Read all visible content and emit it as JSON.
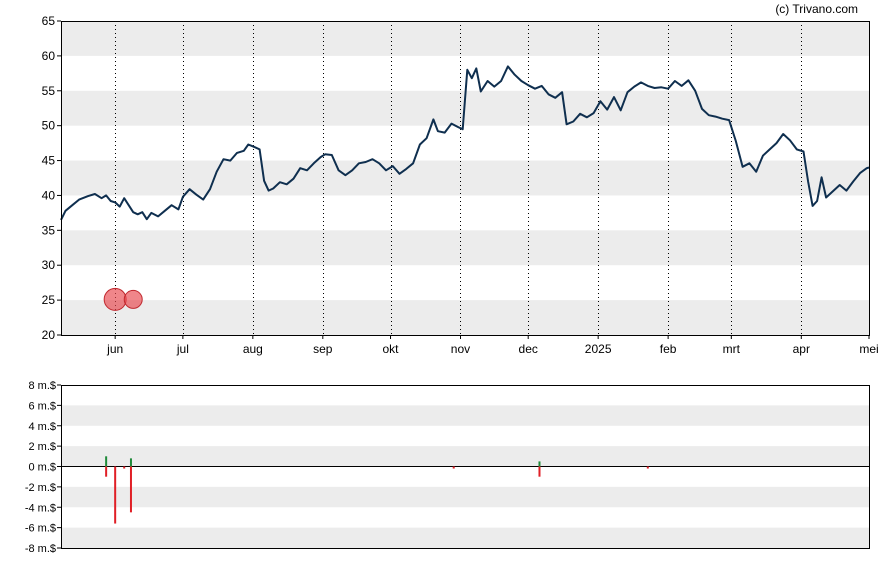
{
  "credit": "(c) Trivano.com",
  "colors": {
    "price_line": "#0f2f4f",
    "band": "#ececec",
    "grid": "#000000",
    "marker": "#e8454b",
    "vol_pos": "#1f8a3a",
    "vol_neg": "#e01f26"
  },
  "chart_data": [
    {
      "type": "line",
      "title": "",
      "ylim": [
        20,
        65
      ],
      "y_ticks": [
        "20",
        "25",
        "30",
        "35",
        "40",
        "45",
        "50",
        "55",
        "60",
        "65"
      ],
      "x_ticks": [
        "jun",
        "jul",
        "aug",
        "sep",
        "okt",
        "nov",
        "dec",
        "2025",
        "feb",
        "mrt",
        "apr",
        "mei"
      ],
      "x_tick_dates": [
        "2024-06-01",
        "2024-07-01",
        "2024-08-01",
        "2024-09-01",
        "2024-10-01",
        "2024-11-01",
        "2024-12-01",
        "2025-01-01",
        "2025-02-01",
        "2025-03-01",
        "2025-04-01",
        "2025-05-01"
      ],
      "x_range": [
        "2024-05-08",
        "2025-05-01"
      ],
      "grid": "vertical dotted at month starts, alternating horizontal bands",
      "series": [
        {
          "points": [
            [
              "2024-05-08",
              36.5
            ],
            [
              "2024-05-10",
              37.8
            ],
            [
              "2024-05-13",
              38.6
            ],
            [
              "2024-05-16",
              39.4
            ],
            [
              "2024-05-20",
              39.9
            ],
            [
              "2024-05-23",
              40.2
            ],
            [
              "2024-05-26",
              39.6
            ],
            [
              "2024-05-28",
              40.0
            ],
            [
              "2024-05-30",
              39.2
            ],
            [
              "2024-06-01",
              39.0
            ],
            [
              "2024-06-03",
              38.4
            ],
            [
              "2024-06-05",
              39.6
            ],
            [
              "2024-06-07",
              38.6
            ],
            [
              "2024-06-09",
              37.6
            ],
            [
              "2024-06-11",
              37.3
            ],
            [
              "2024-06-13",
              37.6
            ],
            [
              "2024-06-15",
              36.6
            ],
            [
              "2024-06-17",
              37.5
            ],
            [
              "2024-06-20",
              37.0
            ],
            [
              "2024-06-23",
              37.8
            ],
            [
              "2024-06-26",
              38.6
            ],
            [
              "2024-06-29",
              38.0
            ],
            [
              "2024-07-01",
              39.8
            ],
            [
              "2024-07-04",
              40.9
            ],
            [
              "2024-07-07",
              40.1
            ],
            [
              "2024-07-10",
              39.4
            ],
            [
              "2024-07-13",
              40.9
            ],
            [
              "2024-07-16",
              43.4
            ],
            [
              "2024-07-19",
              45.2
            ],
            [
              "2024-07-22",
              45.0
            ],
            [
              "2024-07-25",
              46.1
            ],
            [
              "2024-07-28",
              46.4
            ],
            [
              "2024-07-30",
              47.3
            ],
            [
              "2024-08-02",
              46.9
            ],
            [
              "2024-08-04",
              46.6
            ],
            [
              "2024-08-06",
              42.1
            ],
            [
              "2024-08-08",
              40.7
            ],
            [
              "2024-08-10",
              41.0
            ],
            [
              "2024-08-13",
              41.9
            ],
            [
              "2024-08-16",
              41.6
            ],
            [
              "2024-08-19",
              42.4
            ],
            [
              "2024-08-22",
              43.9
            ],
            [
              "2024-08-25",
              43.6
            ],
            [
              "2024-08-28",
              44.6
            ],
            [
              "2024-08-31",
              45.5
            ],
            [
              "2024-09-02",
              45.9
            ],
            [
              "2024-09-05",
              45.8
            ],
            [
              "2024-09-08",
              43.6
            ],
            [
              "2024-09-11",
              42.9
            ],
            [
              "2024-09-14",
              43.6
            ],
            [
              "2024-09-17",
              44.6
            ],
            [
              "2024-09-20",
              44.8
            ],
            [
              "2024-09-23",
              45.2
            ],
            [
              "2024-09-26",
              44.6
            ],
            [
              "2024-09-29",
              43.6
            ],
            [
              "2024-10-02",
              44.2
            ],
            [
              "2024-10-05",
              43.1
            ],
            [
              "2024-10-08",
              43.8
            ],
            [
              "2024-10-11",
              44.6
            ],
            [
              "2024-10-14",
              47.3
            ],
            [
              "2024-10-17",
              48.2
            ],
            [
              "2024-10-20",
              50.9
            ],
            [
              "2024-10-22",
              49.2
            ],
            [
              "2024-10-25",
              49.0
            ],
            [
              "2024-10-28",
              50.3
            ],
            [
              "2024-10-31",
              49.8
            ],
            [
              "2024-11-02",
              49.5
            ],
            [
              "2024-11-04",
              58.0
            ],
            [
              "2024-11-06",
              56.8
            ],
            [
              "2024-11-08",
              58.2
            ],
            [
              "2024-11-10",
              54.9
            ],
            [
              "2024-11-13",
              56.4
            ],
            [
              "2024-11-16",
              55.6
            ],
            [
              "2024-11-19",
              56.4
            ],
            [
              "2024-11-22",
              58.5
            ],
            [
              "2024-11-25",
              57.3
            ],
            [
              "2024-11-28",
              56.4
            ],
            [
              "2024-12-01",
              55.8
            ],
            [
              "2024-12-04",
              55.3
            ],
            [
              "2024-12-07",
              55.7
            ],
            [
              "2024-12-10",
              54.5
            ],
            [
              "2024-12-13",
              54.0
            ],
            [
              "2024-12-16",
              54.8
            ],
            [
              "2024-12-18",
              50.2
            ],
            [
              "2024-12-21",
              50.6
            ],
            [
              "2024-12-24",
              51.7
            ],
            [
              "2024-12-27",
              51.2
            ],
            [
              "2024-12-30",
              51.8
            ],
            [
              "2025-01-02",
              53.5
            ],
            [
              "2025-01-05",
              52.3
            ],
            [
              "2025-01-08",
              54.1
            ],
            [
              "2025-01-11",
              52.2
            ],
            [
              "2025-01-14",
              54.8
            ],
            [
              "2025-01-17",
              55.6
            ],
            [
              "2025-01-20",
              56.2
            ],
            [
              "2025-01-23",
              55.7
            ],
            [
              "2025-01-26",
              55.4
            ],
            [
              "2025-01-29",
              55.5
            ],
            [
              "2025-02-01",
              55.3
            ],
            [
              "2025-02-04",
              56.4
            ],
            [
              "2025-02-07",
              55.7
            ],
            [
              "2025-02-10",
              56.5
            ],
            [
              "2025-02-13",
              55.0
            ],
            [
              "2025-02-16",
              52.4
            ],
            [
              "2025-02-19",
              51.5
            ],
            [
              "2025-02-22",
              51.3
            ],
            [
              "2025-02-25",
              51.0
            ],
            [
              "2025-02-28",
              50.8
            ],
            [
              "2025-03-03",
              47.8
            ],
            [
              "2025-03-06",
              44.1
            ],
            [
              "2025-03-09",
              44.6
            ],
            [
              "2025-03-12",
              43.4
            ],
            [
              "2025-03-15",
              45.7
            ],
            [
              "2025-03-18",
              46.6
            ],
            [
              "2025-03-21",
              47.5
            ],
            [
              "2025-03-24",
              48.8
            ],
            [
              "2025-03-27",
              47.9
            ],
            [
              "2025-03-30",
              46.6
            ],
            [
              "2025-04-02",
              46.3
            ],
            [
              "2025-04-04",
              42.0
            ],
            [
              "2025-04-06",
              38.5
            ],
            [
              "2025-04-08",
              39.2
            ],
            [
              "2025-04-10",
              42.6
            ],
            [
              "2025-04-12",
              39.7
            ],
            [
              "2025-04-15",
              40.6
            ],
            [
              "2025-04-18",
              41.5
            ],
            [
              "2025-04-21",
              40.7
            ],
            [
              "2025-04-24",
              42.0
            ],
            [
              "2025-04-27",
              43.2
            ],
            [
              "2025-04-30",
              43.9
            ],
            [
              "2025-05-01",
              44.0
            ]
          ]
        }
      ],
      "markers": [
        {
          "date": "2024-06-01",
          "value": 25.1,
          "size": "large"
        },
        {
          "date": "2024-06-09",
          "value": 25.1,
          "size": "medium"
        }
      ]
    },
    {
      "type": "bar",
      "title": "",
      "unit": "m.$",
      "ylim": [
        -8,
        8
      ],
      "y_ticks": [
        "8 m.$",
        "6 m.$",
        "4 m.$",
        "2 m.$",
        "0 m.$",
        "-2 m.$",
        "-4 m.$",
        "-6 m.$",
        "-8 m.$"
      ],
      "bars": [
        {
          "date": "2024-05-28",
          "buy": 1.0,
          "sell": -1.0
        },
        {
          "date": "2024-06-01",
          "buy": 0.0,
          "sell": -5.6
        },
        {
          "date": "2024-06-05",
          "buy": 0.0,
          "sell": -0.2
        },
        {
          "date": "2024-06-08",
          "buy": 0.8,
          "sell": -4.5
        },
        {
          "date": "2024-10-29",
          "buy": 0.0,
          "sell": -0.2
        },
        {
          "date": "2024-12-06",
          "buy": 0.5,
          "sell": -1.0
        },
        {
          "date": "2025-01-23",
          "buy": 0.0,
          "sell": -0.2
        }
      ]
    }
  ]
}
